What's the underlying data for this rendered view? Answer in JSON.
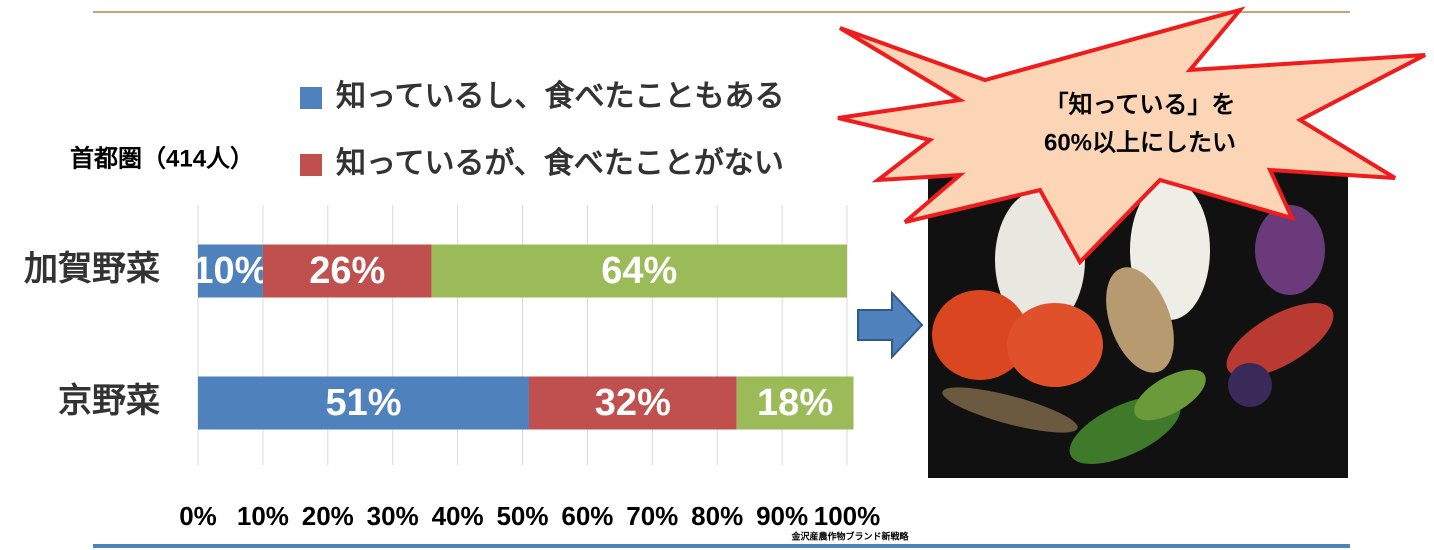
{
  "chart_data": {
    "type": "stacked-bar-horizontal",
    "subtitle": "首都圏（414人）",
    "categories": [
      "加賀野菜",
      "京野菜"
    ],
    "series": [
      {
        "name": "知っているし、食べたこともある",
        "color": "#4f81bd",
        "values": [
          10,
          51
        ],
        "value_labels": [
          "10%",
          "51%"
        ]
      },
      {
        "name": "知っているが、食べたことがない",
        "color": "#c0504d",
        "values": [
          26,
          32
        ],
        "value_labels": [
          "26%",
          "32%"
        ]
      },
      {
        "color": "#9bbb59",
        "values": [
          64,
          18
        ],
        "value_labels": [
          "64%",
          "18%"
        ]
      }
    ],
    "xlim": [
      0,
      100
    ],
    "xticks": [
      {
        "value": 0,
        "label": "0%"
      },
      {
        "value": 10,
        "label": "10%"
      },
      {
        "value": 20,
        "label": "20%"
      },
      {
        "value": 30,
        "label": "30%"
      },
      {
        "value": 40,
        "label": "40%"
      },
      {
        "value": 50,
        "label": "50%"
      },
      {
        "value": 60,
        "label": "60%"
      },
      {
        "value": 70,
        "label": "70%"
      },
      {
        "value": 80,
        "label": "80%"
      },
      {
        "value": 90,
        "label": "90%"
      },
      {
        "value": 100,
        "label": "100%"
      }
    ],
    "grid": true,
    "callout": [
      "「知っている」を",
      "60%以上にしたい"
    ],
    "footer": "金沢産農作物ブランド新戦略"
  }
}
